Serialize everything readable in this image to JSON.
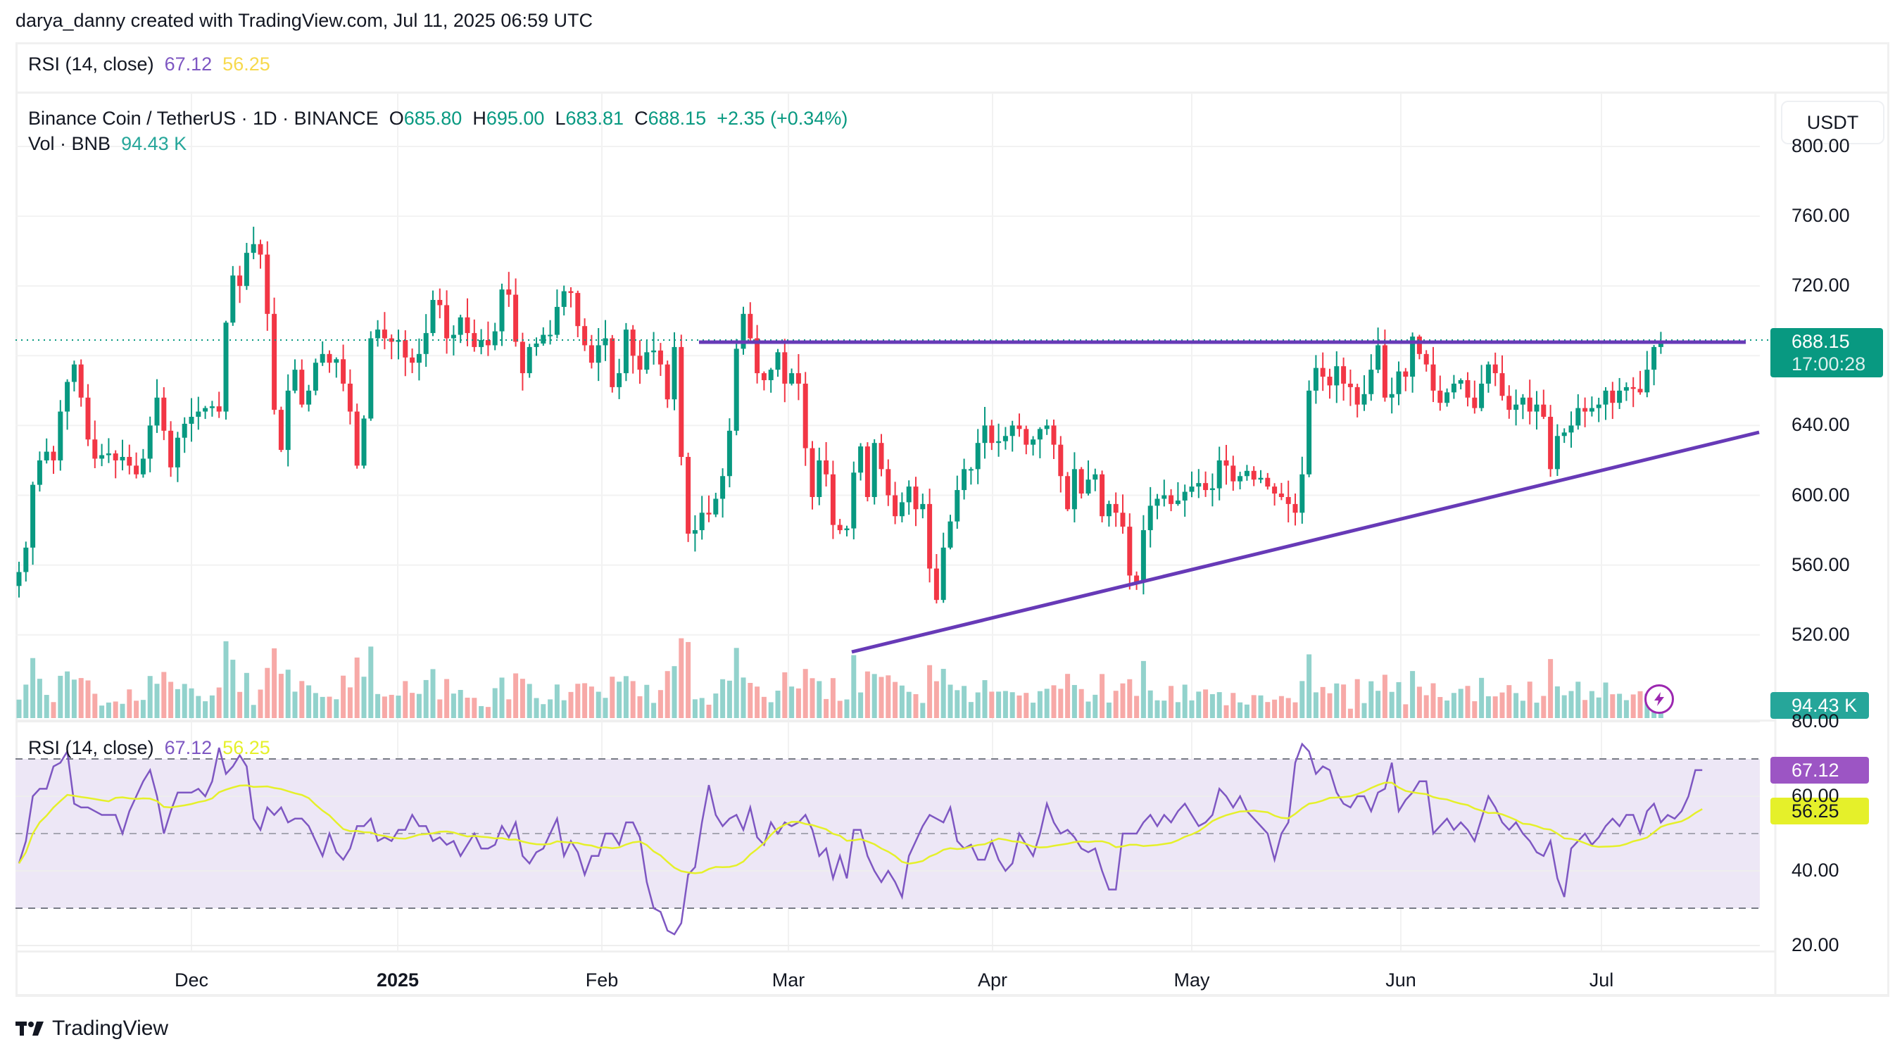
{
  "header": {
    "credit": "darya_danny created with TradingView.com, Jul 11, 2025 06:59 UTC"
  },
  "top_legend": {
    "label": "RSI (14, close)",
    "rsi": "67.12",
    "rsi_ma": "56.25"
  },
  "symbol_legend": {
    "title": "Binance Coin / TetherUS · 1D · BINANCE",
    "o_label": "O",
    "o": "685.80",
    "h_label": "H",
    "h": "695.00",
    "l_label": "L",
    "l": "683.81",
    "c_label": "C",
    "c": "688.15",
    "change": "+2.35 (+0.34%)",
    "vol_label": "Vol · BNB",
    "vol": "94.43 K"
  },
  "currency_button": "USDT",
  "price_axis": [
    "800.00",
    "760.00",
    "720.00",
    "640.00",
    "600.00",
    "560.00",
    "520.00"
  ],
  "price_tag": {
    "price": "688.15",
    "countdown": "17:00:28"
  },
  "volume_tag": "94.43 K",
  "rsi_pane": {
    "label": "RSI (14, close)",
    "rsi": "67.12",
    "rsi_ma": "56.25",
    "axis": [
      "80.00",
      "60.00",
      "40.00",
      "20.00"
    ],
    "rsi_tag": "67.12",
    "ma_tag": "56.25"
  },
  "time_axis": [
    "Dec",
    "2025",
    "Feb",
    "Mar",
    "Apr",
    "May",
    "Jun",
    "Jul"
  ],
  "footer": {
    "brand": "TradingView"
  },
  "colors": {
    "up": "#089981",
    "down": "#f23645",
    "vol_up": "#92d2cc",
    "vol_down": "#f7a9a7",
    "drawing": "#673ab7",
    "rsi": "#7e57c2",
    "rsi_ma": "#e5f02a",
    "rsi_band": "#ede7f6"
  },
  "chart_data": {
    "type": "candlestick",
    "title": "Binance Coin / TetherUS · 1D · BINANCE",
    "ylabel": "USDT",
    "ylim": [
      500,
      805
    ],
    "x_ticks": [
      "Dec",
      "2025",
      "Feb",
      "Mar",
      "Apr",
      "May",
      "Jun",
      "Jul"
    ],
    "last": {
      "open": 685.8,
      "high": 695.0,
      "low": 683.81,
      "close": 688.15,
      "change": 2.35,
      "change_pct": 0.34
    },
    "closes_approx": [
      556,
      570,
      606,
      620,
      625,
      620,
      648,
      665,
      675,
      656,
      632,
      621,
      623,
      624,
      620,
      622,
      617,
      612,
      621,
      640,
      656,
      637,
      616,
      633,
      641,
      645,
      648,
      650,
      651,
      648,
      699,
      726,
      720,
      739,
      744,
      738,
      704,
      649,
      626,
      660,
      672,
      652,
      660,
      676,
      681,
      676,
      678,
      664,
      648,
      617,
      644,
      690,
      695,
      690,
      688,
      689,
      679,
      676,
      681,
      693,
      712,
      709,
      690,
      692,
      702,
      693,
      685,
      689,
      686,
      694,
      718,
      715,
      688,
      670,
      685,
      687,
      692,
      692,
      708,
      717,
      716,
      697,
      686,
      676,
      686,
      690,
      662,
      670,
      695,
      680,
      672,
      682,
      683,
      675,
      655,
      685,
      622,
      578,
      580,
      590,
      589,
      598,
      611,
      637,
      684,
      704,
      690,
      670,
      666,
      672,
      682,
      664,
      670,
      664,
      627,
      599,
      620,
      612,
      583,
      580,
      581,
      613,
      628,
      599,
      630,
      615,
      600,
      588,
      596,
      605,
      592,
      595,
      558,
      540,
      570,
      585,
      603,
      615,
      615,
      630,
      640,
      630,
      631,
      634,
      640,
      638,
      629,
      632,
      638,
      640,
      629,
      611,
      592,
      615,
      601,
      609,
      612,
      588,
      595,
      590,
      582,
      554,
      550,
      580,
      594,
      598,
      600,
      595,
      597,
      602,
      605,
      607,
      603,
      604,
      620,
      617,
      608,
      611,
      614,
      609,
      610,
      605,
      601,
      599,
      595,
      590,
      612,
      660,
      673,
      668,
      663,
      674,
      664,
      662,
      652,
      658,
      672,
      686,
      656,
      658,
      671,
      668,
      691,
      681,
      675,
      660,
      653,
      659,
      664,
      666,
      656,
      650,
      664,
      675,
      670,
      657,
      649,
      652,
      656,
      648,
      652,
      645,
      615,
      634,
      636,
      640,
      650,
      648,
      650,
      652,
      660,
      653,
      660,
      662,
      661,
      659,
      672,
      685,
      688
    ],
    "volume_units": "BNB",
    "volume_last": "94.43K",
    "annotations": [
      {
        "type": "horizontal_resistance",
        "price": 685,
        "from": "mid-Feb 2025",
        "to": "Jul 2025"
      },
      {
        "type": "ascending_trendline",
        "from": {
          "date": "Mar 10 2025",
          "price": 510
        },
        "to": {
          "date": "Jul 2025+",
          "price": 633
        }
      }
    ],
    "rsi": {
      "period": 14,
      "source": "close",
      "current": 67.12,
      "ma_current": 56.25,
      "ylim": [
        18,
        82
      ],
      "bands": [
        30,
        50,
        70
      ],
      "values_approx": [
        42,
        48,
        60,
        62,
        62,
        68,
        69,
        72,
        58,
        57,
        57,
        56,
        55,
        55,
        55,
        50,
        56,
        60,
        64,
        67,
        60,
        50,
        56,
        61,
        61,
        61,
        62,
        60,
        64,
        73,
        66,
        68,
        71,
        68,
        54,
        51,
        57,
        55,
        57,
        53,
        54,
        54,
        52,
        48,
        44,
        50,
        45,
        43,
        46,
        52,
        52,
        54,
        48,
        49,
        48,
        51,
        51,
        55,
        52,
        52,
        48,
        49,
        47,
        48,
        44,
        47,
        50,
        46,
        46,
        47,
        52,
        49,
        53,
        44,
        42,
        45,
        46,
        50,
        54,
        44,
        48,
        45,
        39,
        44,
        44,
        50,
        50,
        47,
        53,
        53,
        49,
        37,
        30,
        29,
        24,
        23,
        26,
        39,
        41,
        53,
        63,
        55,
        52,
        54,
        55,
        51,
        57,
        49,
        47,
        53,
        50,
        53,
        52,
        53,
        55,
        51,
        44,
        46,
        38,
        44,
        38,
        51,
        51,
        44,
        40,
        37,
        40,
        37,
        33,
        44,
        48,
        52,
        55,
        54,
        53,
        57,
        48,
        46,
        47,
        43,
        43,
        48,
        43,
        40,
        42,
        50,
        47,
        44,
        50,
        58,
        53,
        50,
        51,
        49,
        46,
        45,
        46,
        40,
        35,
        35,
        50,
        50,
        50,
        53,
        55,
        52,
        55,
        53,
        56,
        58,
        55,
        52,
        53,
        55,
        62,
        60,
        57,
        60,
        56,
        54,
        52,
        50,
        43,
        50,
        53,
        69,
        74,
        72,
        66,
        68,
        67,
        61,
        58,
        57,
        60,
        60,
        56,
        61,
        62,
        69,
        56,
        59,
        61,
        64,
        64,
        50,
        52,
        54,
        51,
        53,
        51,
        48,
        54,
        60,
        57,
        53,
        51,
        53,
        50,
        48,
        45,
        44,
        48,
        38,
        33,
        46,
        48,
        50,
        47,
        49,
        52,
        54,
        52,
        55,
        55,
        50,
        56,
        58,
        53,
        55,
        54,
        56,
        60,
        67,
        67
      ]
    }
  }
}
